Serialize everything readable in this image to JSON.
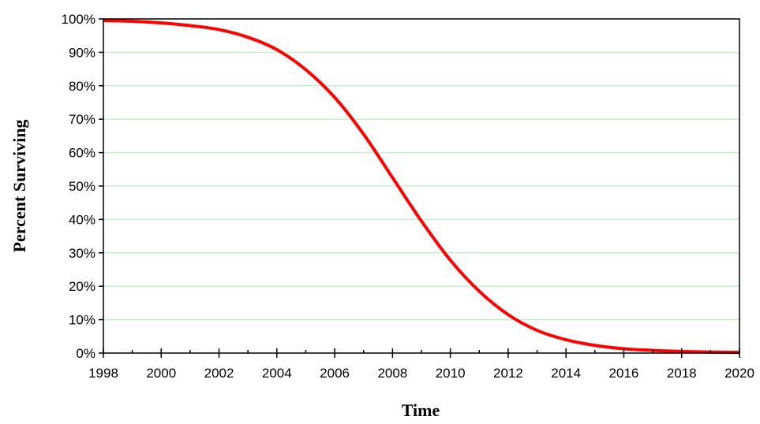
{
  "chart_data": {
    "type": "line",
    "title": "",
    "xlabel": "Time",
    "ylabel": "Percent Surviving",
    "xlim": [
      1998,
      2020
    ],
    "ylim": [
      0,
      100
    ],
    "x_ticks": [
      "1998",
      "2000",
      "2002",
      "2004",
      "2006",
      "2008",
      "2010",
      "2012",
      "2014",
      "2016",
      "2018",
      "2020"
    ],
    "y_ticks": [
      "0%",
      "10%",
      "20%",
      "30%",
      "40%",
      "50%",
      "60%",
      "70%",
      "80%",
      "90%",
      "100%"
    ],
    "grid": "horizontal",
    "legend": "none",
    "series": [
      {
        "color": "#ff0000",
        "x": [
          1998,
          1999,
          2000,
          2001,
          2002,
          2003,
          2004,
          2005,
          2006,
          2007,
          2008,
          2009,
          2010,
          2011,
          2012,
          2013,
          2014,
          2015,
          2016,
          2017,
          2018,
          2019,
          2020
        ],
        "y": [
          99.5,
          99.3,
          98.8,
          98.0,
          96.8,
          94.5,
          90.8,
          84.8,
          76.5,
          65.5,
          52.5,
          39.5,
          27.8,
          18.5,
          11.5,
          6.8,
          4.0,
          2.3,
          1.3,
          0.8,
          0.5,
          0.3,
          0.2
        ]
      }
    ]
  },
  "colors": {
    "gridline": "#c6efce",
    "axis": "#000000",
    "line": "#ff0000"
  }
}
